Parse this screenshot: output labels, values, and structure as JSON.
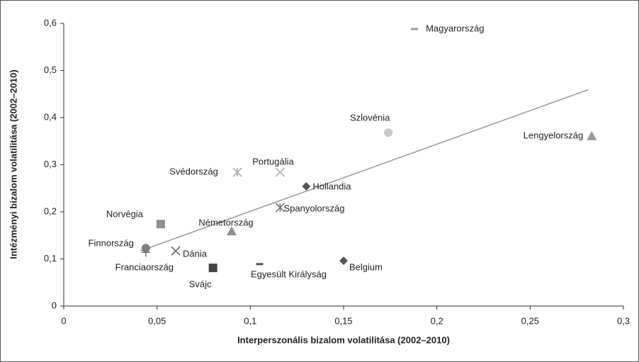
{
  "chart_data": {
    "type": "scatter",
    "xlabel": "Interperszonális bizalom volatilitása (2002–2010)",
    "ylabel": "Intézményi bizalom volatilitása (2002–2010)",
    "xlim": [
      0,
      0.3
    ],
    "xticks": [
      0,
      {
        "value": 0.05,
        "label": "0,05"
      },
      {
        "value": 0.1,
        "label": "0,1"
      },
      {
        "value": 0.15,
        "label": "0,15"
      },
      {
        "value": 0.2,
        "label": "0,2"
      },
      {
        "value": 0.25,
        "label": "0,25"
      },
      {
        "value": 0.3,
        "label": "0,3"
      }
    ],
    "ylim": [
      0,
      0.6
    ],
    "yticks": [
      0,
      {
        "value": 0.1,
        "label": "0,1"
      },
      {
        "value": 0.2,
        "label": "0,2"
      },
      {
        "value": 0.3,
        "label": "0,3"
      },
      {
        "value": 0.4,
        "label": "0,4"
      },
      {
        "value": 0.5,
        "label": "0,5"
      },
      {
        "value": 0.6,
        "label": "0,6"
      }
    ],
    "trendline": {
      "color": "#999999",
      "x": [
        0.041,
        0.281
      ],
      "values": [
        0.117,
        0.459
      ]
    },
    "series": [
      {
        "name": "Magyarország",
        "marker": "dash",
        "color": "#999999",
        "x": [
          0.188
        ],
        "values": [
          0.588
        ]
      },
      {
        "name": "Szlovénia",
        "marker": "circle",
        "color": "#c8c8c8",
        "x": [
          0.174
        ],
        "values": [
          0.368
        ]
      },
      {
        "name": "Lengyelország",
        "marker": "triangle",
        "color": "#9a9a9a",
        "x": [
          0.283
        ],
        "values": [
          0.361
        ]
      },
      {
        "name": "Svédország",
        "marker": "asterisk",
        "color": "#aaaaaa",
        "x": [
          0.093
        ],
        "values": [
          0.284
        ]
      },
      {
        "name": "Portugália",
        "marker": "cross",
        "color": "#b0b0b0",
        "x": [
          0.116
        ],
        "values": [
          0.284
        ]
      },
      {
        "name": "Hollandia",
        "marker": "diamond",
        "color": "#555555",
        "x": [
          0.13
        ],
        "values": [
          0.254
        ]
      },
      {
        "name": "Spanyolország",
        "marker": "asterisk",
        "color": "#777777",
        "x": [
          0.116
        ],
        "values": [
          0.209
        ]
      },
      {
        "name": "Norvégia",
        "marker": "square",
        "color": "#909090",
        "x": [
          0.052
        ],
        "values": [
          0.174
        ]
      },
      {
        "name": "Németország",
        "marker": "triangle",
        "color": "#909090",
        "x": [
          0.09
        ],
        "values": [
          0.159
        ]
      },
      {
        "name": "Finnország",
        "marker": "circle",
        "color": "#808080",
        "x": [
          0.044
        ],
        "values": [
          0.123
        ]
      },
      {
        "name": "Franciaország",
        "marker": "plus",
        "color": "#777777",
        "x": [
          0.044
        ],
        "values": [
          0.114
        ]
      },
      {
        "name": "Dánia",
        "marker": "cross",
        "color": "#666666",
        "x": [
          0.06
        ],
        "values": [
          0.117
        ]
      },
      {
        "name": "Svájc",
        "marker": "square",
        "color": "#444444",
        "x": [
          0.08
        ],
        "values": [
          0.081
        ]
      },
      {
        "name": "Egyesült Királyság",
        "marker": "dash",
        "color": "#555555",
        "x": [
          0.105
        ],
        "values": [
          0.089
        ]
      },
      {
        "name": "Belgium",
        "marker": "diamond",
        "color": "#555555",
        "x": [
          0.15
        ],
        "values": [
          0.096
        ]
      }
    ]
  }
}
